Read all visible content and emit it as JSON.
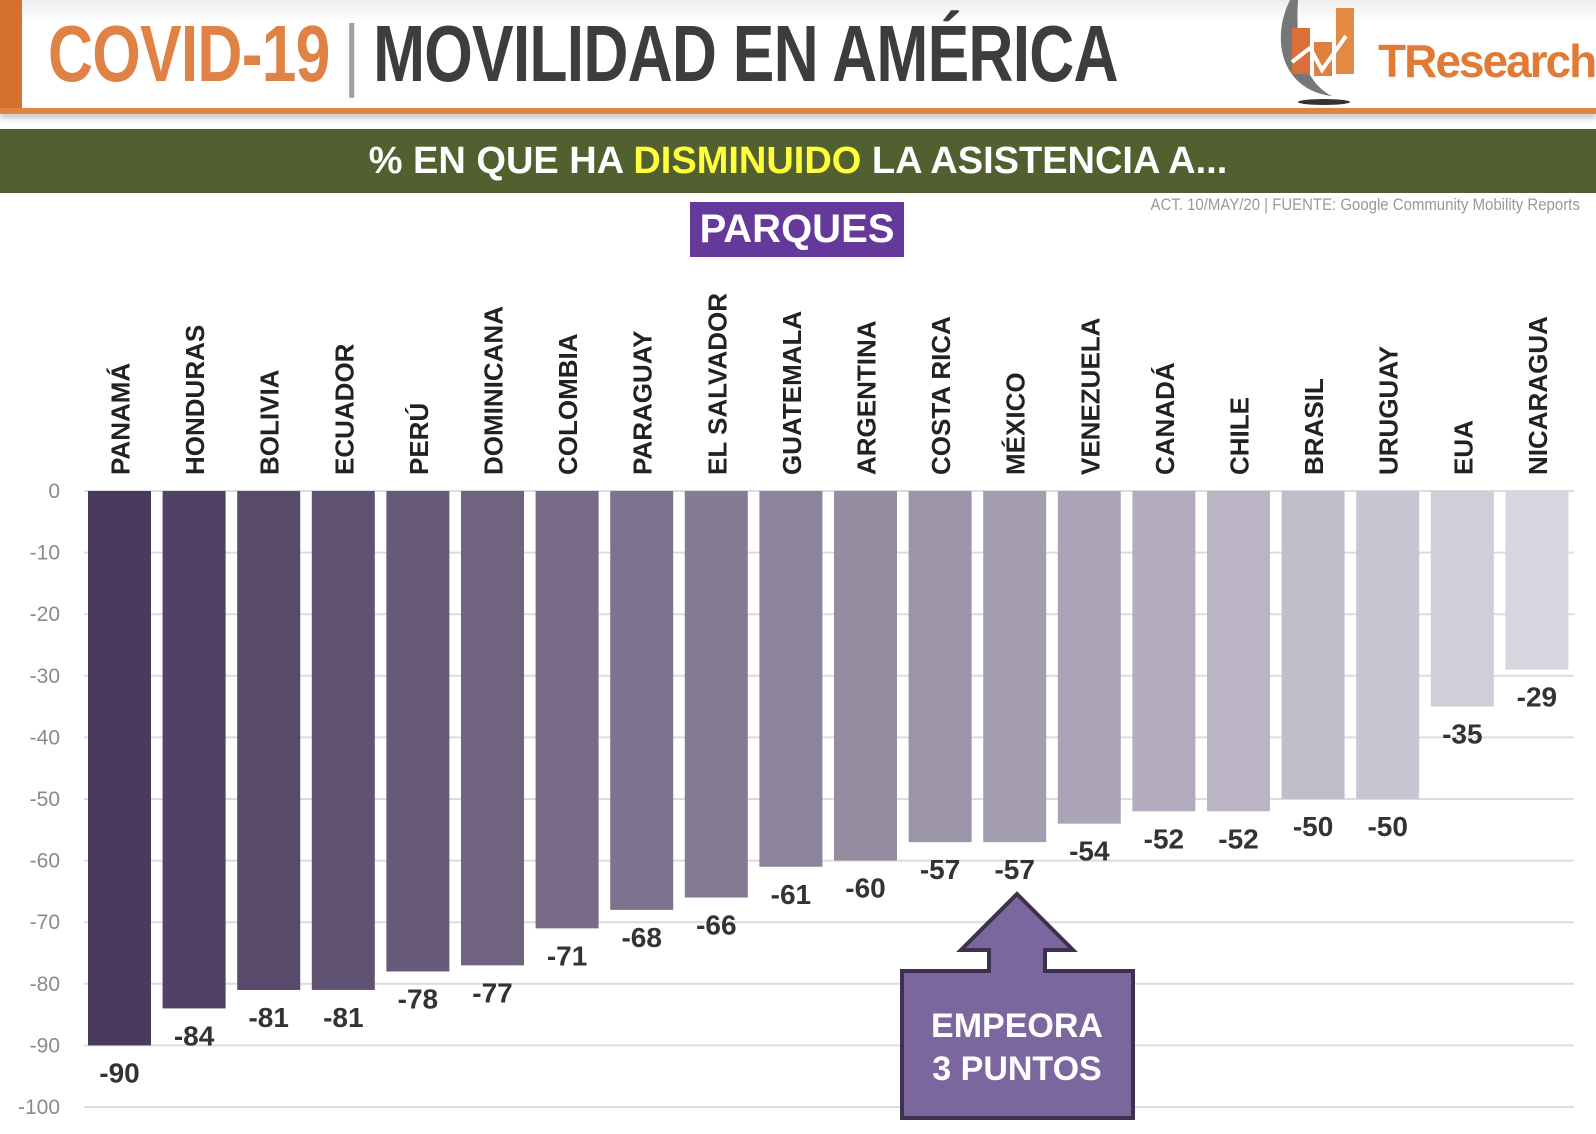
{
  "header": {
    "title_highlight": "COVID-19",
    "title_separator": "|",
    "title_main": "MOVILIDAD EN AMÉRICA",
    "logo_text": "TResearch"
  },
  "banner": {
    "prefix": "% EN QUE HA ",
    "highlight": "DISMINUIDO",
    "suffix": " LA ASISTENCIA A..."
  },
  "source": "ACT. 10/MAY/20 | FUENTE: Google Community Mobility Reports",
  "category_label": "PARQUES",
  "callout": {
    "line1": "EMPEORA",
    "line2": "3 PUNTOS",
    "target": "MÉXICO"
  },
  "colors": {
    "orange": "#e08145",
    "green_band": "#52602f",
    "highlight_yellow": "#ffff3c",
    "purple": "#65399a",
    "bar_dark": "#4a3a5e",
    "bar_light": "#d8d5e0"
  },
  "chart_data": {
    "type": "bar",
    "categories": [
      "PANAMÁ",
      "HONDURAS",
      "BOLIVIA",
      "ECUADOR",
      "PERÚ",
      "DOMINICANA",
      "COLOMBIA",
      "PARAGUAY",
      "EL SALVADOR",
      "GUATEMALA",
      "ARGENTINA",
      "COSTA RICA",
      "MÉXICO",
      "VENEZUELA",
      "CANADÁ",
      "CHILE",
      "BRASIL",
      "URUGUAY",
      "EUA",
      "NICARAGUA"
    ],
    "values": [
      -90,
      -84,
      -81,
      -81,
      -78,
      -77,
      -71,
      -68,
      -66,
      -61,
      -60,
      -57,
      -57,
      -54,
      -52,
      -52,
      -50,
      -50,
      -35,
      -29
    ],
    "ylim": [
      -100,
      0
    ],
    "yticks": [
      0,
      -10,
      -20,
      -30,
      -40,
      -50,
      -60,
      -70,
      -80,
      -90,
      -100
    ],
    "grid": true,
    "title": "",
    "xlabel": "",
    "ylabel": ""
  }
}
